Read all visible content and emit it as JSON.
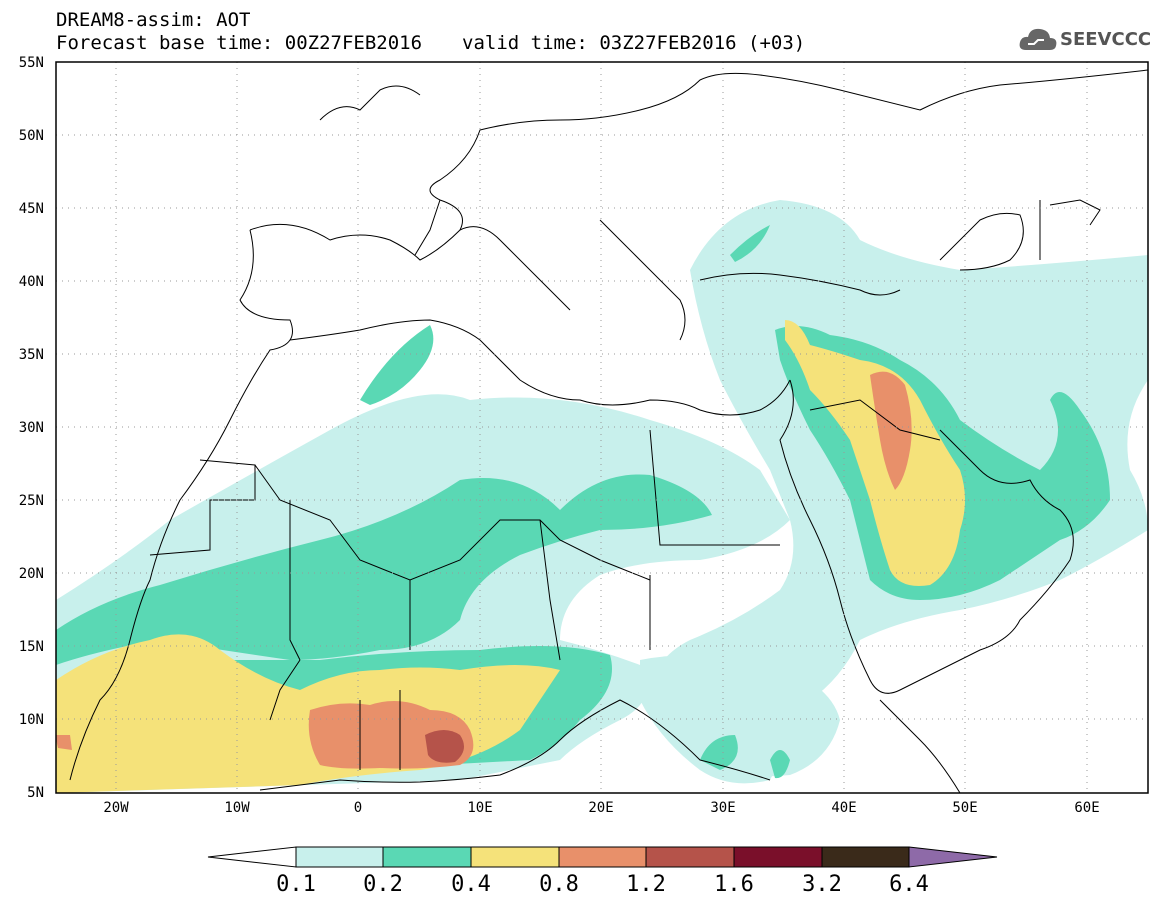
{
  "title": {
    "line1": "DREAM8-assim: AOT",
    "base_time": "Forecast base time: 00Z27FEB2016",
    "valid_time": "valid time: 03Z27FEB2016 (+03)"
  },
  "logo": {
    "text": "SEEVCCC",
    "icon": "cloud-icon"
  },
  "map": {
    "lat_labels": [
      "55N",
      "50N",
      "45N",
      "40N",
      "35N",
      "30N",
      "25N",
      "20N",
      "15N",
      "10N",
      "5N"
    ],
    "lon_labels": [
      "20W",
      "10W",
      "0",
      "10E",
      "20E",
      "30E",
      "40E",
      "50E",
      "60E"
    ],
    "grid": true,
    "field_colors": {
      "0.1": "#c8f0ec",
      "0.2": "#5ad8b4",
      "0.4": "#f5e27a",
      "0.8": "#e8906a",
      "1.2": "#b5534a"
    }
  },
  "colorbar": {
    "labels": [
      "0.1",
      "0.2",
      "0.4",
      "0.8",
      "1.2",
      "1.6",
      "3.2",
      "6.4"
    ],
    "colors": [
      "#c8f0ec",
      "#5ad8b4",
      "#f5e27a",
      "#e8906a",
      "#b5534a",
      "#7a0f2a",
      "#3a2a1a",
      "#8e6aa8"
    ]
  }
}
